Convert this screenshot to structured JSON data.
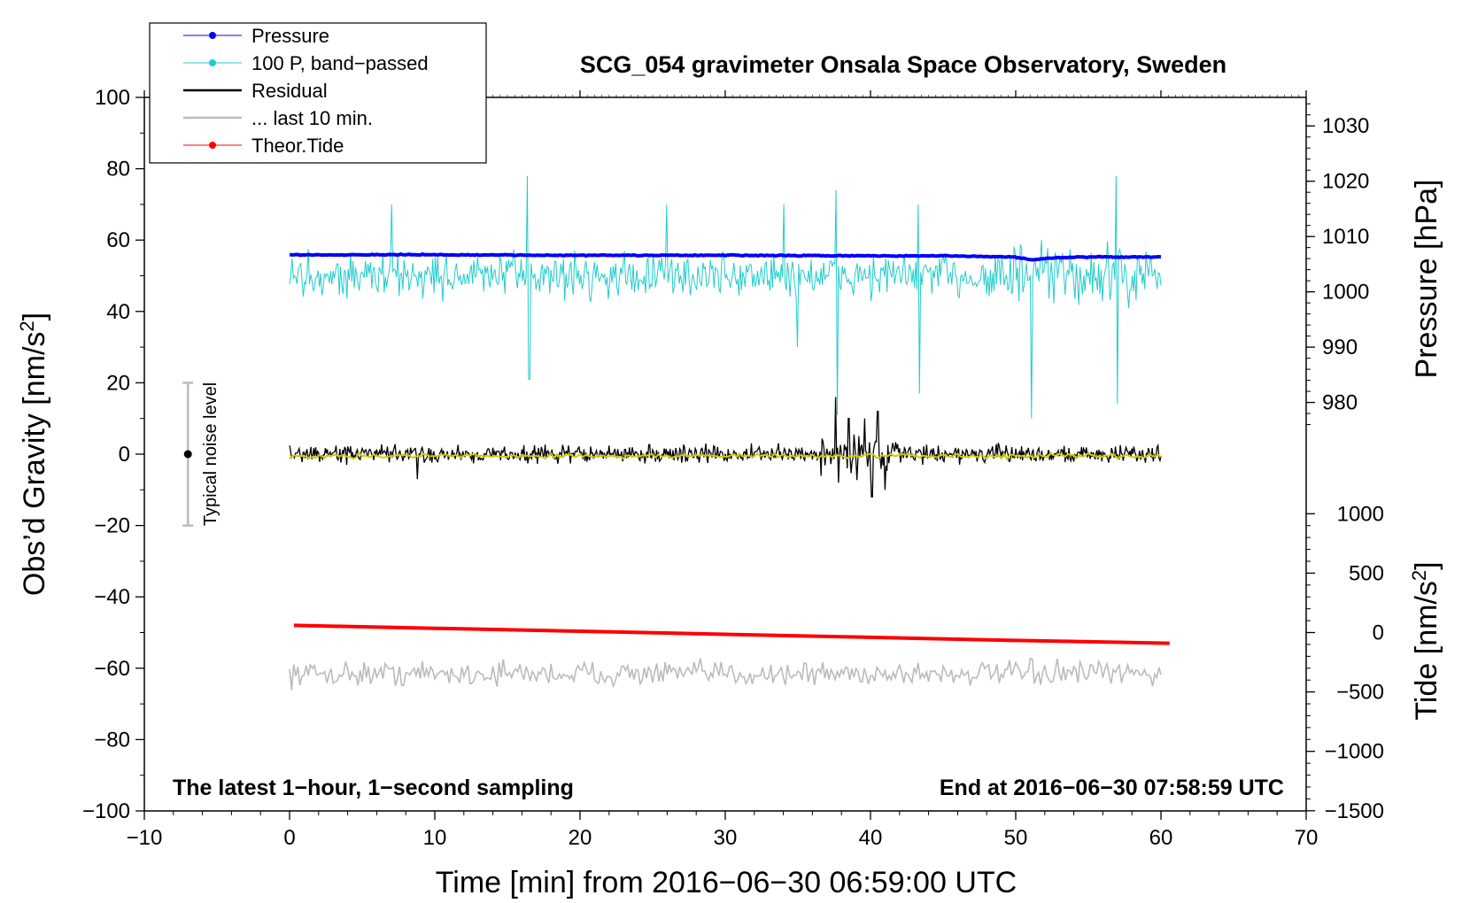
{
  "chart_data": {
    "type": "line",
    "title": "SCG_054 gravimeter Onsala Space Observatory, Sweden",
    "xlabel": "Time [min] from 2016−06−30 06:59:00 UTC",
    "ylabel_main": "Obs’d Gravity [nm/s",
    "ylabel_main_sup": "2",
    "ylabel_main_end": "]",
    "ylabel_pressure": "Pressure [hPa]",
    "ylabel_tide": "Tide [nm/s",
    "ylabel_tide_sup": "2",
    "ylabel_tide_end": "]",
    "xlim": [
      -10,
      70
    ],
    "ylim": [
      -100,
      100
    ],
    "x_ticks": [
      -10,
      0,
      10,
      20,
      30,
      40,
      50,
      60,
      70
    ],
    "x_tick_labels": [
      "−10",
      "0",
      "10",
      "20",
      "30",
      "40",
      "50",
      "60",
      "70"
    ],
    "y_ticks": [
      -100,
      -80,
      -60,
      -40,
      -20,
      0,
      20,
      40,
      60,
      80,
      100
    ],
    "y_tick_labels": [
      "−100",
      "−80",
      "−60",
      "−40",
      "−20",
      "0",
      "20",
      "40",
      "60",
      "80",
      "100"
    ],
    "pressure_axis": {
      "ticks": [
        980,
        990,
        1000,
        1010,
        1020,
        1030
      ],
      "labels": [
        "980",
        "990",
        "1000",
        "1010",
        "1020",
        "1030"
      ],
      "gravity_at_1000": 45.5,
      "gravity_per_hpa": 1.55
    },
    "tide_axis": {
      "ticks": [
        -1500,
        -1000,
        -500,
        0,
        500,
        1000
      ],
      "labels": [
        "−1500",
        "−1000",
        "−500",
        "0",
        "500",
        "1000"
      ],
      "gravity_at_0": -50,
      "gravity_per_unit": 0.0333
    },
    "legend": {
      "placement": "top-left",
      "entries": [
        {
          "label": "Pressure",
          "color": "#0000ff",
          "marker": true
        },
        {
          "label": "100 P, band−passed",
          "color": "#22cccc",
          "marker": true
        },
        {
          "label": "Residual",
          "color": "#000000",
          "marker": false
        },
        {
          "label": "... last 10 min.",
          "color": "#bbbbbb",
          "marker": false
        },
        {
          "label": "Theor.Tide",
          "color": "#ff0000",
          "marker": true
        }
      ]
    },
    "annotations": {
      "bottom_left": "The latest 1−hour, 1−second sampling",
      "bottom_right": "End at 2016−06−30 07:58:59 UTC",
      "noise_label": "Typical noise level"
    },
    "noise_bar": {
      "x": -7,
      "center": 0,
      "half_range": 20
    },
    "series": [
      {
        "name": "Pressure (hPa)",
        "color": "#0000ff",
        "x": [
          0,
          10,
          20,
          30,
          40,
          45,
          50,
          51,
          53,
          55,
          60
        ],
        "y": [
          1006.7,
          1006.7,
          1006.6,
          1006.6,
          1006.5,
          1006.5,
          1006.3,
          1005.8,
          1006.2,
          1006.3,
          1006.3
        ]
      },
      {
        "name": "100 P, band-passed",
        "color": "#22cccc",
        "x_range": [
          0,
          60
        ],
        "center": 50,
        "typical_amplitude": 9,
        "spikes": [
          [
            16.4,
            78
          ],
          [
            16.5,
            21
          ],
          [
            37.6,
            74
          ],
          [
            37.7,
            11
          ],
          [
            43.3,
            70
          ],
          [
            43.4,
            17
          ],
          [
            51.1,
            10
          ],
          [
            56.9,
            78
          ],
          [
            57.0,
            14
          ],
          [
            7,
            70
          ],
          [
            26,
            70
          ],
          [
            34,
            70
          ],
          [
            35,
            30
          ]
        ]
      },
      {
        "name": "Residual",
        "color": "#000000",
        "x_range": [
          0,
          60
        ],
        "center": 0,
        "typical_amplitude": 3.5,
        "spikes": [
          [
            37.6,
            16
          ],
          [
            37.8,
            -8
          ],
          [
            39.6,
            10
          ],
          [
            40.1,
            -12
          ],
          [
            40.5,
            12
          ],
          [
            41.0,
            -10
          ],
          [
            38.5,
            10
          ],
          [
            8.8,
            -7
          ]
        ]
      },
      {
        "name": "Residual smoothed",
        "color": "#cccc00",
        "x_range": [
          0,
          60
        ],
        "center": -0.5,
        "typical_amplitude": 1
      },
      {
        "name": "... last 10 min.",
        "color": "#bbbbbb",
        "x_range": [
          0,
          60
        ],
        "center": -61.5,
        "typical_amplitude": 5
      },
      {
        "name": "Theor.Tide (nm/s2)",
        "color": "#ff0000",
        "x": [
          0.3,
          10,
          20,
          30,
          40,
          50,
          60.6
        ],
        "y": [
          60,
          36,
          11,
          -15,
          -40,
          -66,
          -90
        ]
      }
    ]
  }
}
